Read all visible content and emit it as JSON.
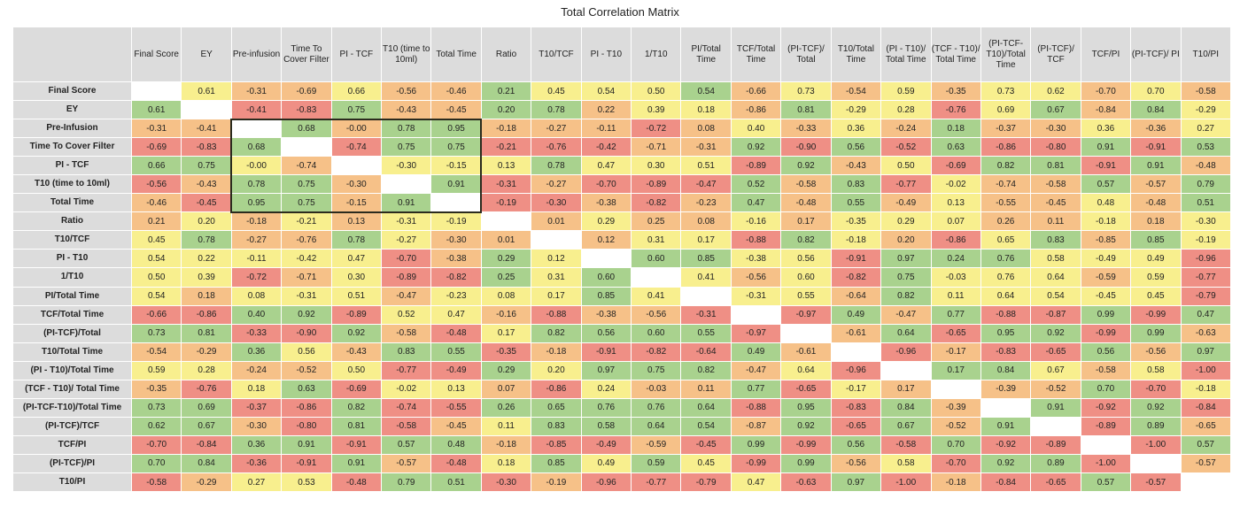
{
  "chart_data": {
    "type": "heatmap",
    "title": "Total Correlation Matrix",
    "labels": [
      "Final Score",
      "EY",
      "Pre-Infusion",
      "Time To Cover Filter",
      "PI - TCF",
      "T10 (time to 10ml)",
      "Total Time",
      "Ratio",
      "T10/TCF",
      "PI - T10",
      "1/T10",
      "PI/Total Time",
      "TCF/Total Time",
      "(PI-TCF)/Total",
      "T10/Total Time",
      "(PI - T10)/Total Time",
      "(TCF - T10)/ Total Time",
      "(PI-TCF-T10)/Total Time",
      "(PI-TCF)/TCF",
      "TCF/PI",
      "(PI-TCF)/PI",
      "T10/PI"
    ],
    "column_labels": [
      "Final Score",
      "EY",
      "Pre-infusion",
      "Time To Cover Filter",
      "PI - TCF",
      "T10 (time to 10ml)",
      "Total Time",
      "Ratio",
      "T10/TCF",
      "PI - T10",
      "1/T10",
      "PI/Total Time",
      "TCF/Total Time",
      "(PI-TCF)/ Total",
      "T10/Total Time",
      "(PI - T10)/ Total Time",
      "(TCF - T10)/ Total Time",
      "(PI-TCF-T10)/Total Time",
      "(PI-TCF)/ TCF",
      "TCF/PI",
      "(PI-TCF)/ PI",
      "T10/PI"
    ],
    "values": [
      [
        null,
        "0.61",
        "-0.31",
        "-0.69",
        "0.66",
        "-0.56",
        "-0.46",
        "0.21",
        "0.45",
        "0.54",
        "0.50",
        "0.54",
        "-0.66",
        "0.73",
        "-0.54",
        "0.59",
        "-0.35",
        "0.73",
        "0.62",
        "-0.70",
        "0.70",
        "-0.58"
      ],
      [
        "0.61",
        null,
        "-0.41",
        "-0.83",
        "0.75",
        "-0.43",
        "-0.45",
        "0.20",
        "0.78",
        "0.22",
        "0.39",
        "0.18",
        "-0.86",
        "0.81",
        "-0.29",
        "0.28",
        "-0.76",
        "0.69",
        "0.67",
        "-0.84",
        "0.84",
        "-0.29"
      ],
      [
        "-0.31",
        "-0.41",
        null,
        "0.68",
        "-0.00",
        "0.78",
        "0.95",
        "-0.18",
        "-0.27",
        "-0.11",
        "-0.72",
        "0.08",
        "0.40",
        "-0.33",
        "0.36",
        "-0.24",
        "0.18",
        "-0.37",
        "-0.30",
        "0.36",
        "-0.36",
        "0.27"
      ],
      [
        "-0.69",
        "-0.83",
        "0.68",
        null,
        "-0.74",
        "0.75",
        "0.75",
        "-0.21",
        "-0.76",
        "-0.42",
        "-0.71",
        "-0.31",
        "0.92",
        "-0.90",
        "0.56",
        "-0.52",
        "0.63",
        "-0.86",
        "-0.80",
        "0.91",
        "-0.91",
        "0.53"
      ],
      [
        "0.66",
        "0.75",
        "-0.00",
        "-0.74",
        null,
        "-0.30",
        "-0.15",
        "0.13",
        "0.78",
        "0.47",
        "0.30",
        "0.51",
        "-0.89",
        "0.92",
        "-0.43",
        "0.50",
        "-0.69",
        "0.82",
        "0.81",
        "-0.91",
        "0.91",
        "-0.48"
      ],
      [
        "-0.56",
        "-0.43",
        "0.78",
        "0.75",
        "-0.30",
        null,
        "0.91",
        "-0.31",
        "-0.27",
        "-0.70",
        "-0.89",
        "-0.47",
        "0.52",
        "-0.58",
        "0.83",
        "-0.77",
        "-0.02",
        "-0.74",
        "-0.58",
        "0.57",
        "-0.57",
        "0.79"
      ],
      [
        "-0.46",
        "-0.45",
        "0.95",
        "0.75",
        "-0.15",
        "0.91",
        null,
        "-0.19",
        "-0.30",
        "-0.38",
        "-0.82",
        "-0.23",
        "0.47",
        "-0.48",
        "0.55",
        "-0.49",
        "0.13",
        "-0.55",
        "-0.45",
        "0.48",
        "-0.48",
        "0.51"
      ],
      [
        "0.21",
        "0.20",
        "-0.18",
        "-0.21",
        "0.13",
        "-0.31",
        "-0.19",
        null,
        "0.01",
        "0.29",
        "0.25",
        "0.08",
        "-0.16",
        "0.17",
        "-0.35",
        "0.29",
        "0.07",
        "0.26",
        "0.11",
        "-0.18",
        "0.18",
        "-0.30"
      ],
      [
        "0.45",
        "0.78",
        "-0.27",
        "-0.76",
        "0.78",
        "-0.27",
        "-0.30",
        "0.01",
        null,
        "0.12",
        "0.31",
        "0.17",
        "-0.88",
        "0.82",
        "-0.18",
        "0.20",
        "-0.86",
        "0.65",
        "0.83",
        "-0.85",
        "0.85",
        "-0.19"
      ],
      [
        "0.54",
        "0.22",
        "-0.11",
        "-0.42",
        "0.47",
        "-0.70",
        "-0.38",
        "0.29",
        "0.12",
        null,
        "0.60",
        "0.85",
        "-0.38",
        "0.56",
        "-0.91",
        "0.97",
        "0.24",
        "0.76",
        "0.58",
        "-0.49",
        "0.49",
        "-0.96"
      ],
      [
        "0.50",
        "0.39",
        "-0.72",
        "-0.71",
        "0.30",
        "-0.89",
        "-0.82",
        "0.25",
        "0.31",
        "0.60",
        null,
        "0.41",
        "-0.56",
        "0.60",
        "-0.82",
        "0.75",
        "-0.03",
        "0.76",
        "0.64",
        "-0.59",
        "0.59",
        "-0.77"
      ],
      [
        "0.54",
        "0.18",
        "0.08",
        "-0.31",
        "0.51",
        "-0.47",
        "-0.23",
        "0.08",
        "0.17",
        "0.85",
        "0.41",
        null,
        "-0.31",
        "0.55",
        "-0.64",
        "0.82",
        "0.11",
        "0.64",
        "0.54",
        "-0.45",
        "0.45",
        "-0.79"
      ],
      [
        "-0.66",
        "-0.86",
        "0.40",
        "0.92",
        "-0.89",
        "0.52",
        "0.47",
        "-0.16",
        "-0.88",
        "-0.38",
        "-0.56",
        "-0.31",
        null,
        "-0.97",
        "0.49",
        "-0.47",
        "0.77",
        "-0.88",
        "-0.87",
        "0.99",
        "-0.99",
        "0.47"
      ],
      [
        "0.73",
        "0.81",
        "-0.33",
        "-0.90",
        "0.92",
        "-0.58",
        "-0.48",
        "0.17",
        "0.82",
        "0.56",
        "0.60",
        "0.55",
        "-0.97",
        null,
        "-0.61",
        "0.64",
        "-0.65",
        "0.95",
        "0.92",
        "-0.99",
        "0.99",
        "-0.63"
      ],
      [
        "-0.54",
        "-0.29",
        "0.36",
        "0.56",
        "-0.43",
        "0.83",
        "0.55",
        "-0.35",
        "-0.18",
        "-0.91",
        "-0.82",
        "-0.64",
        "0.49",
        "-0.61",
        null,
        "-0.96",
        "-0.17",
        "-0.83",
        "-0.65",
        "0.56",
        "-0.56",
        "0.97"
      ],
      [
        "0.59",
        "0.28",
        "-0.24",
        "-0.52",
        "0.50",
        "-0.77",
        "-0.49",
        "0.29",
        "0.20",
        "0.97",
        "0.75",
        "0.82",
        "-0.47",
        "0.64",
        "-0.96",
        null,
        "0.17",
        "0.84",
        "0.67",
        "-0.58",
        "0.58",
        "-1.00"
      ],
      [
        "-0.35",
        "-0.76",
        "0.18",
        "0.63",
        "-0.69",
        "-0.02",
        "0.13",
        "0.07",
        "-0.86",
        "0.24",
        "-0.03",
        "0.11",
        "0.77",
        "-0.65",
        "-0.17",
        "0.17",
        null,
        "-0.39",
        "-0.52",
        "0.70",
        "-0.70",
        "-0.18"
      ],
      [
        "0.73",
        "0.69",
        "-0.37",
        "-0.86",
        "0.82",
        "-0.74",
        "-0.55",
        "0.26",
        "0.65",
        "0.76",
        "0.76",
        "0.64",
        "-0.88",
        "0.95",
        "-0.83",
        "0.84",
        "-0.39",
        null,
        "0.91",
        "-0.92",
        "0.92",
        "-0.84"
      ],
      [
        "0.62",
        "0.67",
        "-0.30",
        "-0.80",
        "0.81",
        "-0.58",
        "-0.45",
        "0.11",
        "0.83",
        "0.58",
        "0.64",
        "0.54",
        "-0.87",
        "0.92",
        "-0.65",
        "0.67",
        "-0.52",
        "0.91",
        null,
        "-0.89",
        "0.89",
        "-0.65"
      ],
      [
        "-0.70",
        "-0.84",
        "0.36",
        "0.91",
        "-0.91",
        "0.57",
        "0.48",
        "-0.18",
        "-0.85",
        "-0.49",
        "-0.59",
        "-0.45",
        "0.99",
        "-0.99",
        "0.56",
        "-0.58",
        "0.70",
        "-0.92",
        "-0.89",
        null,
        "-1.00",
        "0.57"
      ],
      [
        "0.70",
        "0.84",
        "-0.36",
        "-0.91",
        "0.91",
        "-0.57",
        "-0.48",
        "0.18",
        "0.85",
        "0.49",
        "0.59",
        "0.45",
        "-0.99",
        "0.99",
        "-0.56",
        "0.58",
        "-0.70",
        "0.92",
        "0.89",
        "-1.00",
        null,
        "-0.57"
      ],
      [
        "-0.58",
        "-0.29",
        "0.27",
        "0.53",
        "-0.48",
        "0.79",
        "0.51",
        "-0.30",
        "-0.19",
        "-0.96",
        "-0.77",
        "-0.79",
        "0.47",
        "-0.63",
        "0.97",
        "-1.00",
        "-0.18",
        "-0.84",
        "-0.65",
        "0.57",
        "-0.57",
        null
      ]
    ],
    "highlight_box": {
      "rows": [
        "Pre-Infusion",
        "Total Time"
      ],
      "columns": [
        "Pre-infusion",
        "Total Time"
      ]
    },
    "colors": {
      "green": "#a9d28e",
      "yellow": "#f8ef8e",
      "orange": "#f6c188",
      "red": "#ef8f85",
      "diagonal": "#ffffff",
      "header": "#dcdcdc"
    },
    "color_scale": "per-column ranking: highest values green, lowest values red"
  }
}
